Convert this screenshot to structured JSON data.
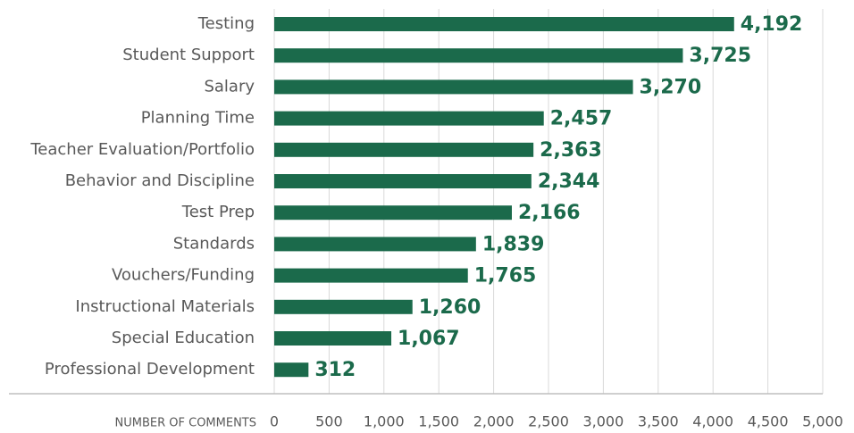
{
  "chart_data": {
    "type": "bar",
    "orientation": "horizontal",
    "categories": [
      "Testing",
      "Student Support",
      "Salary",
      "Planning Time",
      "Teacher Evaluation/Portfolio",
      "Behavior and Discipline",
      "Test Prep",
      "Standards",
      "Vouchers/Funding",
      "Instructional Materials",
      "Special Education",
      "Professional Development"
    ],
    "values": [
      4192,
      3725,
      3270,
      2457,
      2363,
      2344,
      2166,
      1839,
      1765,
      1260,
      1067,
      312
    ],
    "value_labels": [
      "4,192",
      "3,725",
      "3,270",
      "2,457",
      "2,363",
      "2,344",
      "2,166",
      "1,839",
      "1,765",
      "1,260",
      "1,067",
      "312"
    ],
    "color": "#1b6a4b",
    "x_label": "NUMBER OF COMMENTS",
    "xlim": [
      0,
      5000
    ],
    "xticks": [
      0,
      500,
      {
        "value": 1000,
        "label": "1,000"
      },
      {
        "value": 1500,
        "label": "1,500"
      },
      {
        "value": 2000,
        "label": "2,000"
      },
      {
        "value": 2500,
        "label": "2,500"
      },
      {
        "value": 3000,
        "label": "3,000"
      },
      {
        "value": 3500,
        "label": "3,500"
      },
      {
        "value": 4000,
        "label": "4,000"
      },
      {
        "value": 4500,
        "label": "4,500"
      },
      {
        "value": 5000,
        "label": "5,000"
      }
    ],
    "grid": true
  }
}
